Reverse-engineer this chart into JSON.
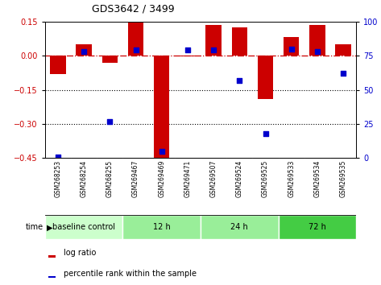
{
  "title": "GDS3642 / 3499",
  "samples": [
    "GSM268253",
    "GSM268254",
    "GSM268255",
    "GSM269467",
    "GSM269469",
    "GSM269471",
    "GSM269507",
    "GSM269524",
    "GSM269525",
    "GSM269533",
    "GSM269534",
    "GSM269535"
  ],
  "log_ratio": [
    -0.08,
    0.05,
    -0.03,
    0.145,
    -0.46,
    -0.005,
    0.135,
    0.125,
    -0.19,
    0.08,
    0.135,
    0.05
  ],
  "percentile_rank": [
    1,
    78,
    27,
    79,
    5,
    79,
    79,
    57,
    18,
    80,
    78,
    62
  ],
  "ylim_left": [
    -0.45,
    0.15
  ],
  "ylim_right": [
    0,
    100
  ],
  "yticks_left": [
    -0.45,
    -0.3,
    -0.15,
    0.0,
    0.15
  ],
  "yticks_right": [
    0,
    25,
    50,
    75,
    100
  ],
  "bar_color": "#cc0000",
  "dot_color": "#0000cc",
  "hline_color": "#cc0000",
  "dotline1": -0.15,
  "dotline2": -0.3,
  "group_defs": [
    [
      0,
      3,
      "#ccffcc",
      "baseline control"
    ],
    [
      3,
      6,
      "#99ee99",
      "12 h"
    ],
    [
      6,
      9,
      "#99ee99",
      "24 h"
    ],
    [
      9,
      12,
      "#44cc44",
      "72 h"
    ]
  ],
  "legend_bar_label": "log ratio",
  "legend_dot_label": "percentile rank within the sample",
  "tick_label_color_left": "#cc0000",
  "tick_label_color_right": "#0000cc"
}
